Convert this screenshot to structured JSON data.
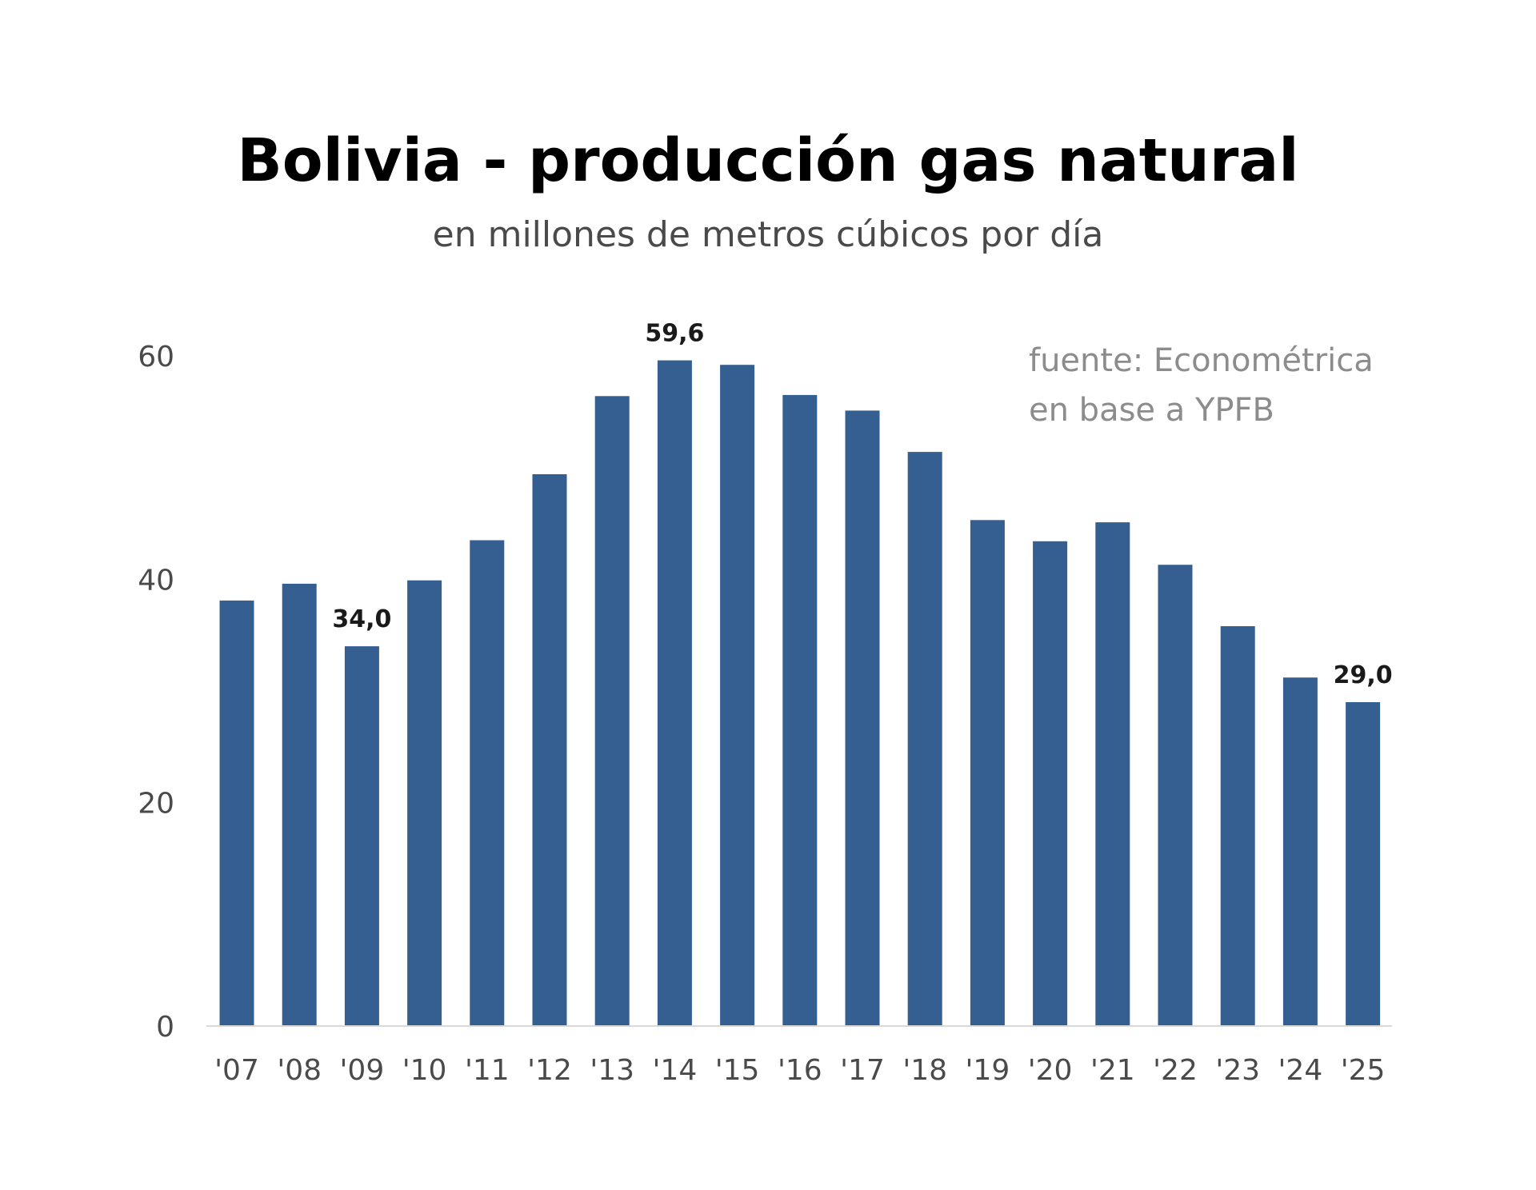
{
  "chart_data": {
    "type": "bar",
    "title": "Bolivia - producción gas natural",
    "subtitle": "en millones de metros cúbicos por día",
    "source": [
      "fuente: Econométrica",
      "en base a YPFB"
    ],
    "categories": [
      "'07",
      "'08",
      "'09",
      "'10",
      "'11",
      "'12",
      "'13",
      "'14",
      "'15",
      "'16",
      "'17",
      "'18",
      "'19",
      "'20",
      "'21",
      "'22",
      "'23",
      "'24",
      "'25"
    ],
    "values": [
      38.1,
      39.6,
      34.0,
      39.9,
      43.5,
      49.4,
      56.4,
      59.6,
      59.2,
      56.5,
      55.1,
      51.4,
      45.3,
      43.4,
      45.1,
      41.3,
      35.8,
      31.2,
      29.0
    ],
    "data_labels": [
      {
        "index": 2,
        "text": "34,0"
      },
      {
        "index": 7,
        "text": "59,6"
      },
      {
        "index": 18,
        "text": "29,0"
      }
    ],
    "y_ticks": [
      "0",
      "20",
      "40",
      "60"
    ],
    "y_tick_values": [
      0,
      20,
      40,
      60
    ],
    "ylim": [
      0,
      60
    ],
    "bar_color": "#365F91",
    "grid": false
  }
}
